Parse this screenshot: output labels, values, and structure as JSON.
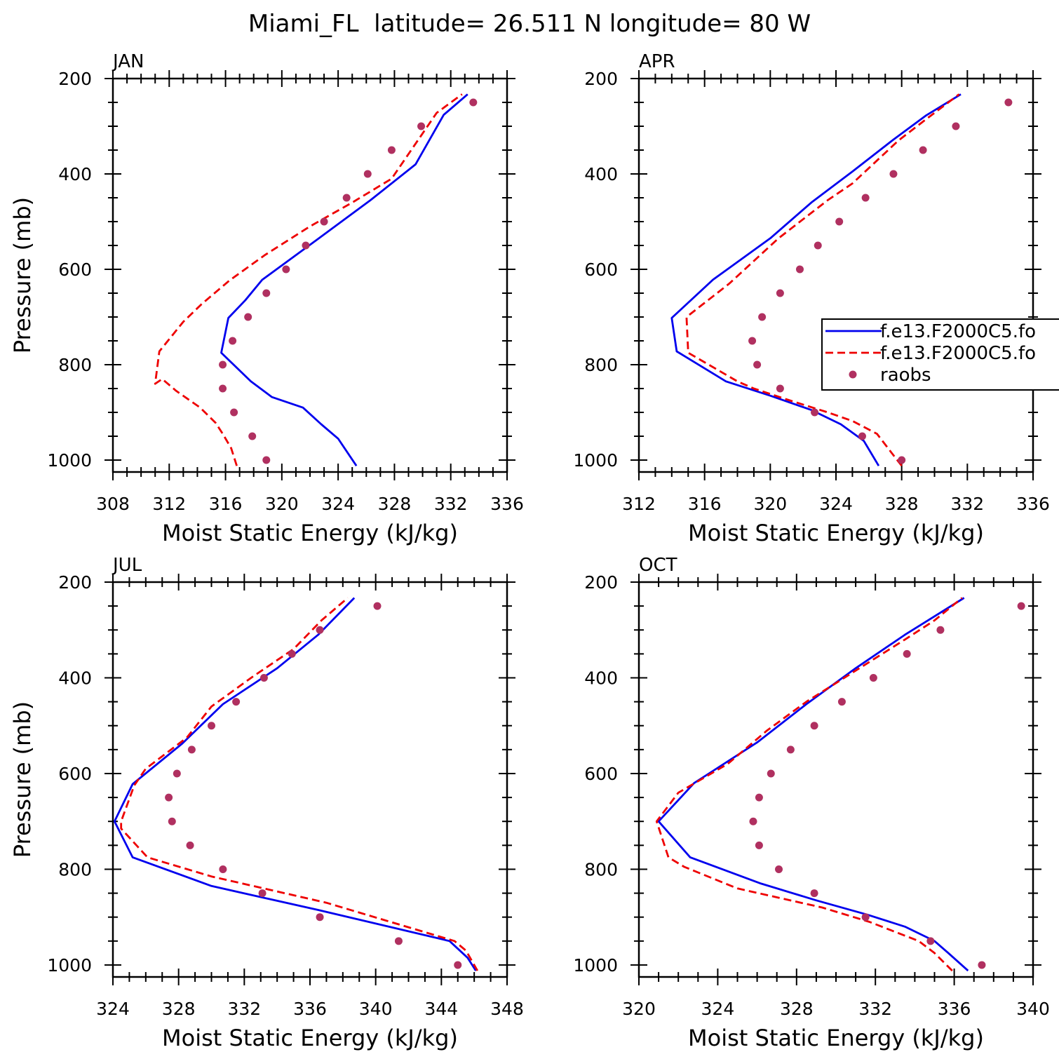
{
  "figure_title": "Miami_FL  latitude= 26.511 N longitude= 80 W",
  "colors": {
    "model_a": "#0000ee",
    "model_b": "#ee0000",
    "obs": "#b03060",
    "axis": "#000000",
    "background": "#ffffff"
  },
  "legend": {
    "panel": "APR",
    "entries": [
      {
        "label": "f.e13.F2000C5.fo",
        "style": "solid",
        "color_key": "model_a"
      },
      {
        "label": "f.e13.F2000C5.fo",
        "style": "dashed",
        "color_key": "model_b"
      },
      {
        "label": "raobs",
        "style": "dot",
        "color_key": "obs"
      }
    ]
  },
  "chart_data": [
    {
      "type": "line",
      "title": "JAN",
      "xlabel": "Moist Static Energy (kJ/kg)",
      "ylabel": "Pressure (mb)",
      "xlim": [
        308,
        336
      ],
      "ylim": [
        1025,
        200
      ],
      "y_reversed": true,
      "xticks": [
        308,
        312,
        316,
        320,
        324,
        328,
        332,
        336
      ],
      "xminor": 1,
      "yticks": [
        200,
        400,
        600,
        800,
        1000
      ],
      "yminor": 50,
      "grid": false,
      "series": [
        {
          "color_key": "model_a",
          "style": "solid",
          "points": [
            [
              325.3,
              1012
            ],
            [
              324.0,
              955
            ],
            [
              322.8,
              925
            ],
            [
              321.5,
              890
            ],
            [
              319.3,
              868
            ],
            [
              317.8,
              835
            ],
            [
              315.7,
              775
            ],
            [
              316.2,
              702
            ],
            [
              317.4,
              665
            ],
            [
              318.6,
              622
            ],
            [
              322.5,
              538
            ],
            [
              326.3,
              455
            ],
            [
              329.5,
              380
            ],
            [
              331.5,
              276
            ],
            [
              333.2,
              233
            ]
          ]
        },
        {
          "color_key": "model_b",
          "style": "dashed",
          "points": [
            [
              316.8,
              1012
            ],
            [
              316.4,
              975
            ],
            [
              315.8,
              945
            ],
            [
              315.3,
              922
            ],
            [
              314.2,
              890
            ],
            [
              312.5,
              855
            ],
            [
              311.5,
              830
            ],
            [
              311.0,
              840
            ],
            [
              311.3,
              772
            ],
            [
              313.0,
              710
            ],
            [
              314.3,
              673
            ],
            [
              316.3,
              623
            ],
            [
              318.8,
              570
            ],
            [
              322.0,
              510
            ],
            [
              325.0,
              460
            ],
            [
              327.8,
              410
            ],
            [
              331.0,
              272
            ],
            [
              332.8,
              233
            ]
          ]
        },
        {
          "color_key": "obs",
          "style": "dot",
          "points": [
            [
              333.6,
              250
            ],
            [
              329.9,
              300
            ],
            [
              327.8,
              350
            ],
            [
              326.1,
              400
            ],
            [
              324.6,
              450
            ],
            [
              323.0,
              500
            ],
            [
              321.7,
              550
            ],
            [
              320.3,
              600
            ],
            [
              318.9,
              650
            ],
            [
              317.6,
              700
            ],
            [
              316.5,
              750
            ],
            [
              315.8,
              800
            ],
            [
              315.8,
              850
            ],
            [
              316.6,
              900
            ],
            [
              317.9,
              950
            ],
            [
              318.9,
              1000
            ]
          ]
        }
      ]
    },
    {
      "type": "line",
      "title": "APR",
      "xlabel": "Moist Static Energy (kJ/kg)",
      "ylabel": "",
      "xlim": [
        312,
        336
      ],
      "ylim": [
        1025,
        200
      ],
      "y_reversed": true,
      "xticks": [
        312,
        316,
        320,
        324,
        328,
        332,
        336
      ],
      "xminor": 1,
      "yticks": [
        200,
        400,
        600,
        800,
        1000
      ],
      "yminor": 50,
      "grid": false,
      "series": [
        {
          "color_key": "model_a",
          "style": "solid",
          "points": [
            [
              326.6,
              1012
            ],
            [
              325.7,
              960
            ],
            [
              324.3,
              925
            ],
            [
              322.5,
              895
            ],
            [
              320.0,
              865
            ],
            [
              317.3,
              835
            ],
            [
              314.3,
              772
            ],
            [
              314.0,
              702
            ],
            [
              316.5,
              622
            ],
            [
              320.0,
              535
            ],
            [
              322.5,
              460
            ],
            [
              325.0,
              395
            ],
            [
              327.5,
              328
            ],
            [
              329.5,
              277
            ],
            [
              331.6,
              233
            ]
          ]
        },
        {
          "color_key": "model_b",
          "style": "dashed",
          "points": [
            [
              328.0,
              1012
            ],
            [
              327.5,
              990
            ],
            [
              326.5,
              945
            ],
            [
              325.0,
              918
            ],
            [
              323.5,
              900
            ],
            [
              321.2,
              875
            ],
            [
              319.0,
              850
            ],
            [
              318.0,
              835
            ],
            [
              315.0,
              775
            ],
            [
              314.9,
              700
            ],
            [
              317.5,
              630
            ],
            [
              320.5,
              535
            ],
            [
              323.5,
              455
            ],
            [
              325.0,
              420
            ],
            [
              327.8,
              330
            ],
            [
              329.5,
              285
            ],
            [
              331.5,
              233
            ]
          ]
        },
        {
          "color_key": "obs",
          "style": "dot",
          "points": [
            [
              334.5,
              250
            ],
            [
              331.3,
              300
            ],
            [
              329.3,
              350
            ],
            [
              327.5,
              400
            ],
            [
              325.8,
              450
            ],
            [
              324.2,
              500
            ],
            [
              322.9,
              550
            ],
            [
              321.8,
              600
            ],
            [
              320.6,
              650
            ],
            [
              319.5,
              700
            ],
            [
              318.9,
              750
            ],
            [
              319.2,
              800
            ],
            [
              320.6,
              850
            ],
            [
              322.7,
              900
            ],
            [
              325.6,
              950
            ],
            [
              328.0,
              1000
            ]
          ]
        }
      ]
    },
    {
      "type": "line",
      "title": "JUL",
      "xlabel": "Moist Static Energy (kJ/kg)",
      "ylabel": "Pressure (mb)",
      "xlim": [
        324,
        348
      ],
      "ylim": [
        1025,
        200
      ],
      "y_reversed": true,
      "xticks": [
        324,
        328,
        332,
        336,
        340,
        344,
        348
      ],
      "xminor": 1,
      "yticks": [
        200,
        400,
        600,
        800,
        1000
      ],
      "yminor": 50,
      "grid": false,
      "series": [
        {
          "color_key": "model_a",
          "style": "solid",
          "points": [
            [
              346.1,
              1012
            ],
            [
              345.6,
              985
            ],
            [
              344.5,
              950
            ],
            [
              336.5,
              885
            ],
            [
              330.0,
              835
            ],
            [
              325.2,
              775
            ],
            [
              324.1,
              700
            ],
            [
              325.2,
              622
            ],
            [
              328.2,
              538
            ],
            [
              330.7,
              455
            ],
            [
              334.0,
              380
            ],
            [
              336.5,
              310
            ],
            [
              338.7,
              233
            ]
          ]
        },
        {
          "color_key": "model_b",
          "style": "dashed",
          "points": [
            [
              346.2,
              1012
            ],
            [
              345.5,
              970
            ],
            [
              344.8,
              950
            ],
            [
              337.0,
              870
            ],
            [
              330.0,
              815
            ],
            [
              326.1,
              775
            ],
            [
              324.5,
              715
            ],
            [
              324.5,
              700
            ],
            [
              325.3,
              625
            ],
            [
              326.0,
              590
            ],
            [
              328.5,
              525
            ],
            [
              330.0,
              460
            ],
            [
              332.5,
              398
            ],
            [
              335.0,
              340
            ],
            [
              336.7,
              280
            ],
            [
              338.3,
              233
            ]
          ]
        },
        {
          "color_key": "obs",
          "style": "dot",
          "points": [
            [
              340.1,
              250
            ],
            [
              336.6,
              300
            ],
            [
              334.9,
              350
            ],
            [
              333.2,
              400
            ],
            [
              331.5,
              450
            ],
            [
              330.0,
              500
            ],
            [
              328.8,
              550
            ],
            [
              327.9,
              600
            ],
            [
              327.4,
              650
            ],
            [
              327.6,
              700
            ],
            [
              328.7,
              750
            ],
            [
              330.7,
              800
            ],
            [
              333.1,
              850
            ],
            [
              336.6,
              900
            ],
            [
              341.4,
              950
            ],
            [
              345.0,
              1000
            ]
          ]
        }
      ]
    },
    {
      "type": "line",
      "title": "OCT",
      "xlabel": "Moist Static Energy (kJ/kg)",
      "ylabel": "",
      "xlim": [
        320,
        340
      ],
      "ylim": [
        1025,
        200
      ],
      "y_reversed": true,
      "xticks": [
        320,
        324,
        328,
        332,
        336,
        340
      ],
      "xminor": 1,
      "yticks": [
        200,
        400,
        600,
        800,
        1000
      ],
      "yminor": 50,
      "grid": false,
      "series": [
        {
          "color_key": "model_a",
          "style": "solid",
          "points": [
            [
              336.7,
              1012
            ],
            [
              335.7,
              975
            ],
            [
              335.0,
              950
            ],
            [
              333.5,
              920
            ],
            [
              331.6,
              895
            ],
            [
              329.0,
              865
            ],
            [
              326.2,
              830
            ],
            [
              322.6,
              775
            ],
            [
              321.0,
              700
            ],
            [
              322.8,
              620
            ],
            [
              326.0,
              535
            ],
            [
              328.5,
              455
            ],
            [
              331.0,
              380
            ],
            [
              333.5,
              310
            ],
            [
              336.5,
              233
            ]
          ]
        },
        {
          "color_key": "model_b",
          "style": "dashed",
          "points": [
            [
              335.9,
              1012
            ],
            [
              335.0,
              975
            ],
            [
              334.2,
              950
            ],
            [
              331.7,
              910
            ],
            [
              329.3,
              880
            ],
            [
              325.0,
              840
            ],
            [
              322.3,
              795
            ],
            [
              321.5,
              775
            ],
            [
              320.9,
              700
            ],
            [
              322.0,
              640
            ],
            [
              324.5,
              580
            ],
            [
              326.5,
              510
            ],
            [
              328.5,
              450
            ],
            [
              331.0,
              385
            ],
            [
              333.5,
              320
            ],
            [
              335.0,
              280
            ],
            [
              336.4,
              233
            ]
          ]
        },
        {
          "color_key": "obs",
          "style": "dot",
          "points": [
            [
              339.4,
              250
            ],
            [
              335.3,
              300
            ],
            [
              333.6,
              350
            ],
            [
              331.9,
              400
            ],
            [
              330.3,
              450
            ],
            [
              328.9,
              500
            ],
            [
              327.7,
              550
            ],
            [
              326.7,
              600
            ],
            [
              326.1,
              650
            ],
            [
              325.8,
              700
            ],
            [
              326.1,
              750
            ],
            [
              327.1,
              800
            ],
            [
              328.9,
              850
            ],
            [
              331.5,
              900
            ],
            [
              334.8,
              950
            ],
            [
              337.4,
              1000
            ]
          ]
        }
      ]
    }
  ]
}
